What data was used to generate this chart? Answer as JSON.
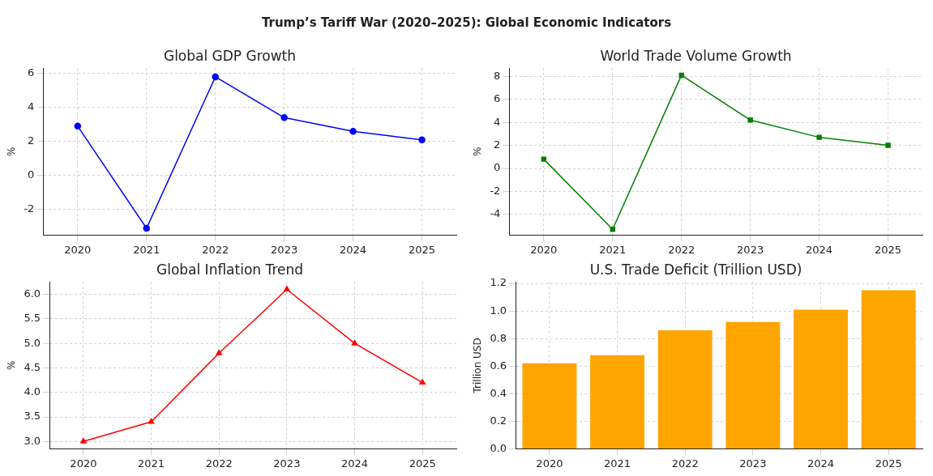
{
  "chart_data": [
    {
      "type": "other",
      "title": "Trump’s Tariff War (2020–2025): Global Economic Indicators"
    },
    {
      "type": "line",
      "title": "Global GDP Growth",
      "ylabel": "%",
      "categories": [
        "2020",
        "2021",
        "2022",
        "2023",
        "2024",
        "2025"
      ],
      "series": [
        {
          "color": "#0000ff",
          "values": [
            2.9,
            -3.1,
            5.8,
            3.4,
            2.6,
            2.1
          ]
        }
      ],
      "ylim": [
        -3.5,
        6.3
      ],
      "yticks": [
        -2,
        0,
        2,
        4,
        6
      ],
      "grid": true,
      "marker": "circle",
      "line_style": "solid",
      "legend": false
    },
    {
      "type": "line",
      "title": "World Trade Volume Growth",
      "ylabel": "%",
      "categories": [
        "2020",
        "2021",
        "2022",
        "2023",
        "2024",
        "2025"
      ],
      "series": [
        {
          "color": "#008000",
          "values": [
            0.8,
            -5.3,
            8.1,
            4.2,
            2.7,
            2.0
          ]
        }
      ],
      "ylim": [
        -5.8,
        8.7
      ],
      "yticks": [
        -4,
        -2,
        0,
        2,
        4,
        6,
        8
      ],
      "grid": true,
      "marker": "square",
      "line_style": "solid",
      "legend": false
    },
    {
      "type": "line",
      "title": "Global Inflation Trend",
      "ylabel": "%",
      "categories": [
        "2020",
        "2021",
        "2022",
        "2023",
        "2024",
        "2025"
      ],
      "series": [
        {
          "color": "#ff0000",
          "values": [
            3.0,
            3.4,
            4.8,
            6.1,
            5.0,
            4.2
          ]
        }
      ],
      "ylim": [
        2.85,
        6.25
      ],
      "yticks": [
        {
          "value": 3,
          "label": "3.0"
        },
        3.5,
        {
          "value": 4,
          "label": "4.0"
        },
        4.5,
        {
          "value": 5,
          "label": "5.0"
        },
        5.5,
        {
          "value": 6,
          "label": "6.0"
        }
      ],
      "grid": true,
      "marker": "triangle",
      "line_style": "solid",
      "legend": false
    },
    {
      "type": "bar",
      "title": "U.S. Trade Deficit (Trillion USD)",
      "ylabel": "Trillion USD",
      "categories": [
        "2020",
        "2021",
        "2022",
        "2023",
        "2024",
        "2025"
      ],
      "series": [
        {
          "color": "#ffa500",
          "values": [
            0.62,
            0.68,
            0.86,
            0.92,
            1.01,
            1.15
          ]
        }
      ],
      "ylim": [
        0,
        1.21
      ],
      "yticks": [
        {
          "value": 0,
          "label": "0.0"
        },
        0.2,
        0.4,
        0.6,
        0.8,
        {
          "value": 1,
          "label": "1.0"
        },
        1.2
      ],
      "grid": true,
      "legend": false
    }
  ]
}
